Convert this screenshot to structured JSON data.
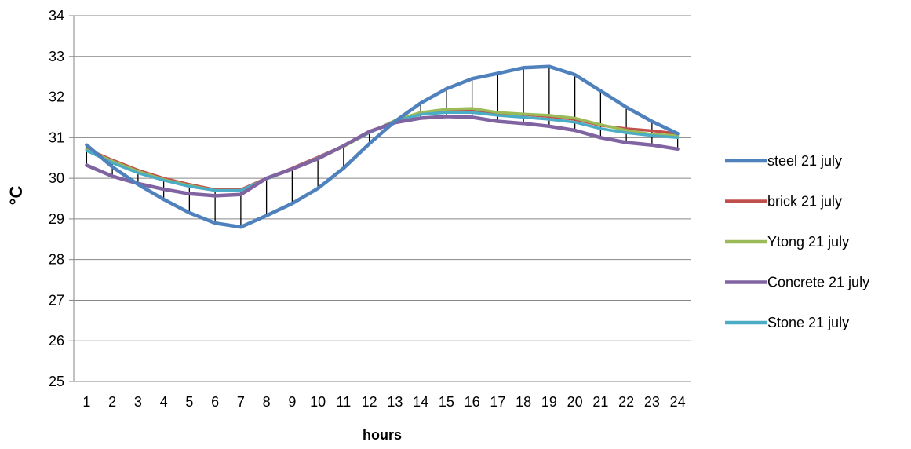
{
  "chart_data": {
    "type": "line",
    "xlabel": "hours",
    "ylabel": "°C",
    "x": [
      1,
      2,
      3,
      4,
      5,
      6,
      7,
      8,
      9,
      10,
      11,
      12,
      13,
      14,
      15,
      16,
      17,
      18,
      19,
      20,
      21,
      22,
      23,
      24
    ],
    "ylim": [
      25,
      34
    ],
    "yticks": [
      25,
      26,
      27,
      28,
      29,
      30,
      31,
      32,
      33,
      34
    ],
    "grid": true,
    "legend": "right",
    "drop_lines": true,
    "series": [
      {
        "name": "steel 21 july",
        "color": "#4F81BD",
        "values": [
          30.82,
          30.28,
          29.85,
          29.48,
          29.15,
          28.9,
          28.8,
          29.08,
          29.38,
          29.75,
          30.25,
          30.85,
          31.4,
          31.85,
          32.2,
          32.45,
          32.58,
          32.72,
          32.75,
          32.55,
          32.15,
          31.75,
          31.4,
          31.1
        ]
      },
      {
        "name": "brick 21 july",
        "color": "#C0504D",
        "values": [
          30.72,
          30.45,
          30.2,
          30.0,
          29.85,
          29.72,
          29.72,
          30.0,
          30.25,
          30.52,
          30.8,
          31.12,
          31.42,
          31.6,
          31.68,
          31.68,
          31.6,
          31.57,
          31.52,
          31.45,
          31.3,
          31.22,
          31.17,
          31.1
        ]
      },
      {
        "name": "Ytong 21 july",
        "color": "#9BBB59",
        "values": [
          30.7,
          30.42,
          30.17,
          29.97,
          29.82,
          29.7,
          29.7,
          29.98,
          30.22,
          30.48,
          30.78,
          31.12,
          31.42,
          31.62,
          31.7,
          31.72,
          31.62,
          31.58,
          31.55,
          31.48,
          31.32,
          31.18,
          31.08,
          31.05
        ]
      },
      {
        "name": "Concrete 21 july",
        "color": "#8064A2",
        "values": [
          30.32,
          30.05,
          29.87,
          29.73,
          29.62,
          29.57,
          29.6,
          30.0,
          30.23,
          30.48,
          30.8,
          31.15,
          31.37,
          31.48,
          31.52,
          31.5,
          31.4,
          31.35,
          31.28,
          31.18,
          31.0,
          30.88,
          30.82,
          30.72
        ]
      },
      {
        "name": "Stone 21 july",
        "color": "#4BACC6",
        "values": [
          30.68,
          30.38,
          30.13,
          29.95,
          29.8,
          29.7,
          29.7,
          29.98,
          30.23,
          30.5,
          30.8,
          31.12,
          31.4,
          31.57,
          31.62,
          31.62,
          31.55,
          31.5,
          31.45,
          31.38,
          31.22,
          31.12,
          31.05,
          31.0
        ]
      }
    ]
  }
}
